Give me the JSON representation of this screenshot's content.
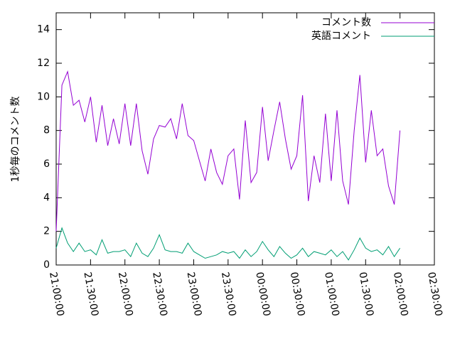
{
  "chart_data": {
    "type": "line",
    "y_label": "1秒毎のコメント数",
    "x": [
      "21:00:00",
      "21:05:00",
      "21:10:00",
      "21:15:00",
      "21:20:00",
      "21:25:00",
      "21:30:00",
      "21:35:00",
      "21:40:00",
      "21:45:00",
      "21:50:00",
      "21:55:00",
      "22:00:00",
      "22:05:00",
      "22:10:00",
      "22:15:00",
      "22:20:00",
      "22:25:00",
      "22:30:00",
      "22:35:00",
      "22:40:00",
      "22:45:00",
      "22:50:00",
      "22:55:00",
      "23:00:00",
      "23:05:00",
      "23:10:00",
      "23:15:00",
      "23:20:00",
      "23:25:00",
      "23:30:00",
      "23:35:00",
      "23:40:00",
      "23:45:00",
      "23:50:00",
      "23:55:00",
      "00:00:00",
      "00:05:00",
      "00:10:00",
      "00:15:00",
      "00:20:00",
      "00:25:00",
      "00:30:00",
      "00:35:00",
      "00:40:00",
      "00:45:00",
      "00:50:00",
      "00:55:00",
      "01:00:00",
      "01:05:00",
      "01:10:00",
      "01:15:00",
      "01:20:00",
      "01:25:00",
      "01:30:00",
      "01:35:00",
      "01:40:00",
      "01:45:00",
      "01:50:00",
      "01:55:00",
      "02:00:00"
    ],
    "series": [
      {
        "name": "コメント数",
        "color": "#9400d3",
        "values": [
          2.0,
          10.7,
          11.5,
          9.5,
          9.8,
          8.5,
          10.0,
          7.3,
          9.5,
          7.1,
          8.7,
          7.2,
          9.6,
          7.1,
          9.6,
          6.8,
          5.4,
          7.5,
          8.3,
          8.2,
          8.7,
          7.5,
          9.6,
          7.7,
          7.4,
          6.2,
          5.0,
          6.9,
          5.5,
          4.8,
          6.5,
          6.9,
          3.9,
          8.6,
          4.9,
          5.5,
          9.4,
          6.2,
          8.0,
          9.7,
          7.5,
          5.7,
          6.5,
          10.1,
          3.8,
          6.5,
          4.9,
          9.0,
          5.0,
          9.2,
          5.0,
          3.6,
          8.0,
          11.3,
          6.1,
          9.2,
          6.5,
          6.9,
          4.7,
          3.6,
          8.0
        ]
      },
      {
        "name": "英語コメント",
        "color": "#009e73",
        "values": [
          1.0,
          2.2,
          1.3,
          0.8,
          1.3,
          0.8,
          0.9,
          0.6,
          1.5,
          0.7,
          0.8,
          0.8,
          0.9,
          0.5,
          1.3,
          0.7,
          0.5,
          1.0,
          1.8,
          0.9,
          0.8,
          0.8,
          0.7,
          1.3,
          0.8,
          0.6,
          0.4,
          0.5,
          0.6,
          0.8,
          0.7,
          0.8,
          0.4,
          0.9,
          0.5,
          0.8,
          1.4,
          0.9,
          0.5,
          1.1,
          0.7,
          0.4,
          0.6,
          1.0,
          0.5,
          0.8,
          0.7,
          0.6,
          0.9,
          0.5,
          0.8,
          0.3,
          0.9,
          1.6,
          1.0,
          0.8,
          0.9,
          0.6,
          1.1,
          0.5,
          1.0
        ]
      }
    ],
    "xlim": [
      "21:00:00",
      "02:30:00"
    ],
    "xticks": [
      "21:00:00",
      "21:30:00",
      "22:00:00",
      "22:30:00",
      "23:00:00",
      "23:30:00",
      "00:00:00",
      "00:30:00",
      "01:00:00",
      "01:30:00",
      "02:00:00",
      "02:30:00"
    ],
    "ylim": [
      0,
      15
    ],
    "yticks": [
      0,
      2,
      4,
      6,
      8,
      10,
      12,
      14
    ],
    "legend": "top-right"
  }
}
